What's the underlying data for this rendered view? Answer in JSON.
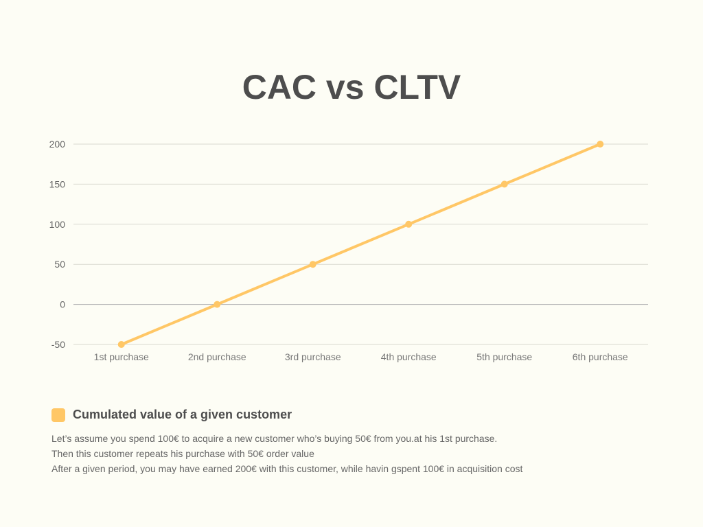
{
  "chart_data": {
    "type": "line",
    "title": "CAC vs CLTV",
    "categories": [
      "1st purchase",
      "2nd purchase",
      "3rd purchase",
      "4th purchase",
      "5th purchase",
      "6th purchase"
    ],
    "series": [
      {
        "name": "Cumulated value of a given customer",
        "values": [
          -50,
          0,
          50,
          100,
          150,
          200
        ],
        "color": "#ffc766"
      }
    ],
    "yticks": [
      200,
      150,
      100,
      50,
      0,
      -50
    ],
    "ylim": [
      -50,
      200
    ],
    "xlabel": "",
    "ylabel": "",
    "grid": true,
    "legend": "bottom-left"
  },
  "description": [
    "Let’s assume you spend 100€ to acquire a new customer who’s buying 50€ from you.at his 1st purchase.",
    "Then this customer repeats his purchase with 50€ order value",
    "After a given period, you may have earned 200€ with this customer, while havin gspent 100€ in acquisition cost"
  ]
}
